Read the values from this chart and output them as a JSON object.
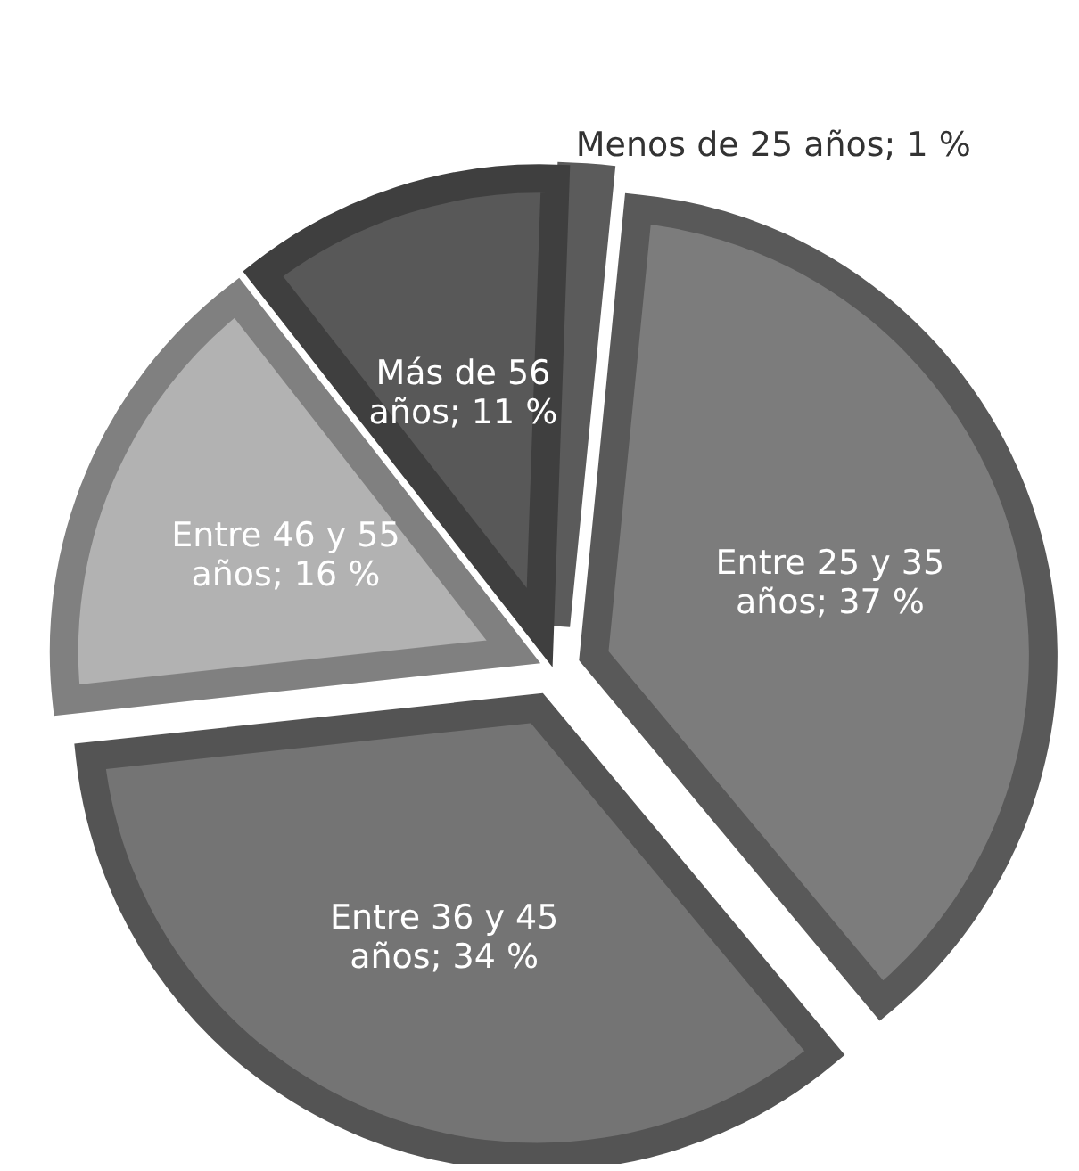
{
  "chart_data": {
    "type": "pie",
    "categories": [
      "Menos de 25 años",
      "Entre 25 y 35 años",
      "Entre 36 y 45 años",
      "Entre 46 y 55 años",
      "Más de 56 años"
    ],
    "values": [
      1,
      37,
      34,
      16,
      11
    ],
    "colors": [
      "#7f7f7f",
      "#7c7c7c",
      "#747474",
      "#b2b2b2",
      "#585858"
    ],
    "value_labels": [
      "1 %",
      "37 %",
      "34 %",
      "16 %",
      "11 %"
    ],
    "legend": false
  }
}
